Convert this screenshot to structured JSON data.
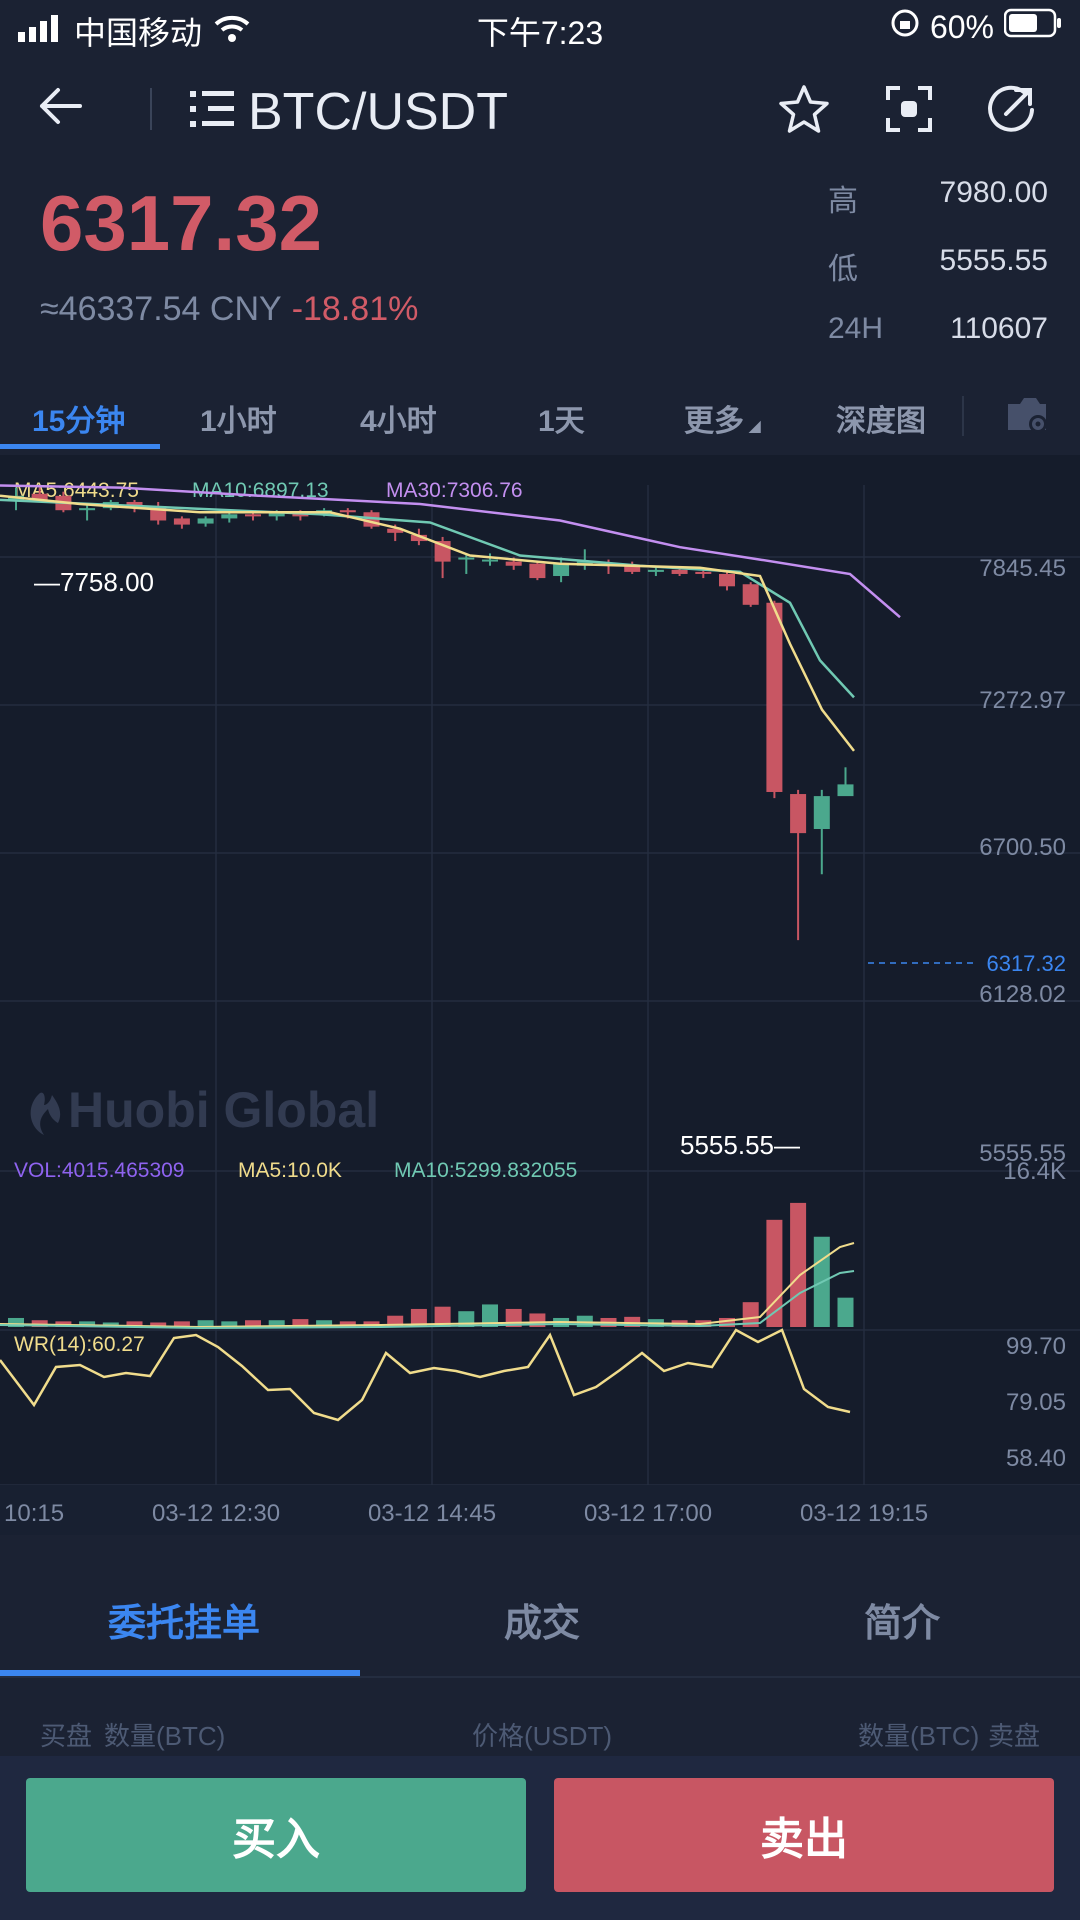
{
  "status_bar": {
    "carrier": "中国移动",
    "time": "下午7:23",
    "battery": "60%"
  },
  "header": {
    "symbol": "BTC/USDT"
  },
  "ticker": {
    "last_price": "6317.32",
    "cny": "≈46337.54 CNY",
    "change": "-18.81%",
    "high_label": "高",
    "high_value": "7980.00",
    "low_label": "低",
    "low_value": "5555.55",
    "vol_label": "24H",
    "vol_value": "110607"
  },
  "intervals": [
    "15分钟",
    "1小时",
    "4小时",
    "1天",
    "更多",
    "深度图"
  ],
  "chart_data": {
    "type": "candlestick",
    "ma_labels": [
      "MA5:6443.75",
      "MA10:6897.13",
      "MA30:7306.76"
    ],
    "y_ticks": [
      "7845.45",
      "7272.97",
      "6700.50",
      "6128.02",
      "5555.55"
    ],
    "current_price_label": "6317.32",
    "max_marker": "7758.00",
    "min_marker": "5555.55",
    "watermark": "Huobi Global",
    "vol_labels": [
      "VOL:4015.465309",
      "MA5:10.0K",
      "MA10:5299.832055"
    ],
    "vol_max_tick": "16.4K",
    "wr_label": "WR(14):60.27",
    "wr_ticks": [
      "99.70",
      "79.05",
      "58.40"
    ],
    "x_ticks": [
      "10:15",
      "03-12 12:30",
      "03-12 14:45",
      "03-12 17:00",
      "03-12 19:15"
    ],
    "colors": {
      "up": "#4ba88d",
      "down": "#c85663",
      "ma5": "#f0dc8c",
      "ma10": "#70c9b3",
      "ma30": "#c38ff0"
    }
  },
  "lower_tabs": [
    "委托挂单",
    "成交",
    "简介"
  ],
  "order_book_header": {
    "buy": "买盘",
    "qty_left": "数量(BTC)",
    "price": "价格(USDT)",
    "qty_right": "数量(BTC)",
    "sell": "卖盘"
  },
  "actions": {
    "buy": "买入",
    "sell": "卖出"
  }
}
